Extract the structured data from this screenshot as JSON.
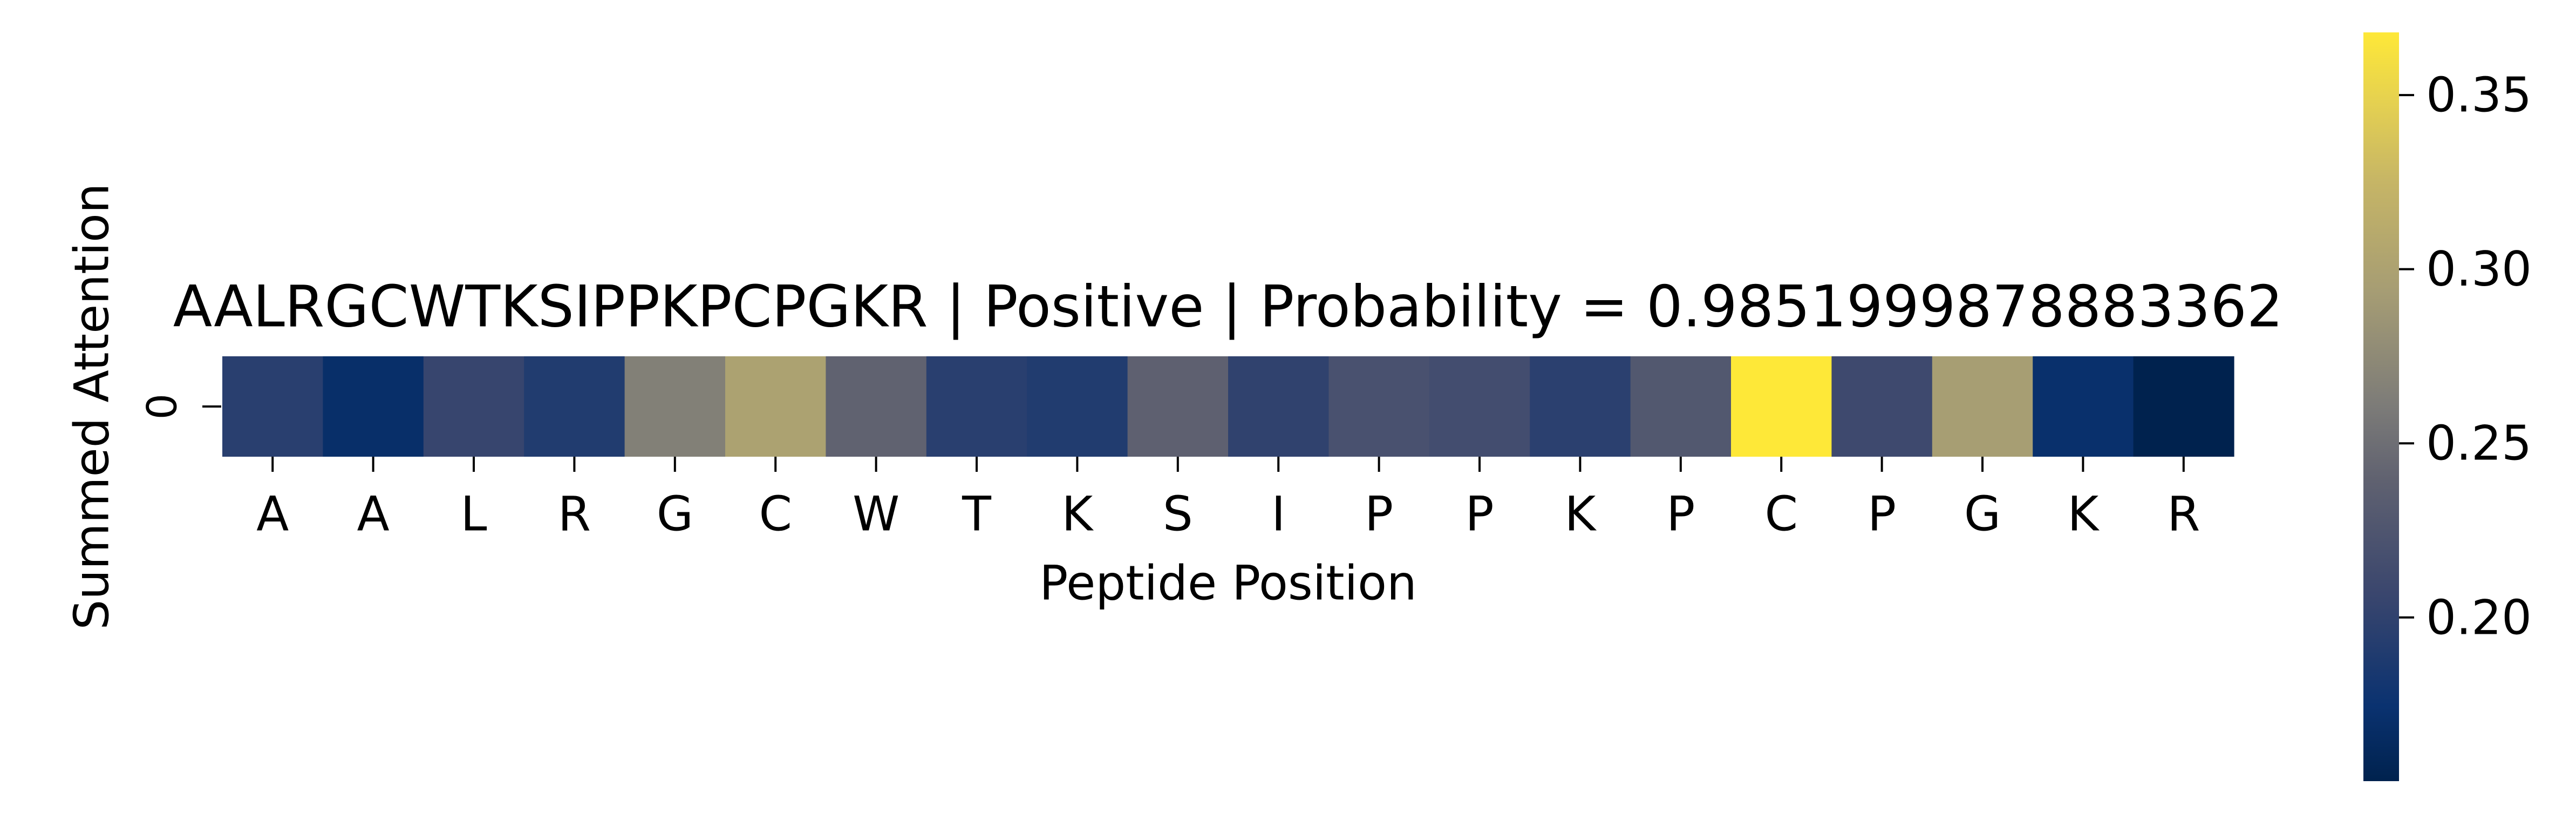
{
  "chart_data": {
    "type": "heatmap",
    "title": "AALRGCWTKSIPPKPCPGKR | Positive | Probability = 0.9851999878883362",
    "xlabel": "Peptide Position",
    "ylabel": "Summed Attention",
    "y_categories": [
      "0"
    ],
    "x_categories": [
      "A",
      "A",
      "L",
      "R",
      "G",
      "C",
      "W",
      "T",
      "K",
      "S",
      "I",
      "P",
      "P",
      "K",
      "P",
      "C",
      "P",
      "G",
      "K",
      "R"
    ],
    "values": [
      0.195,
      0.17,
      0.205,
      0.19,
      0.265,
      0.3,
      0.24,
      0.195,
      0.19,
      0.238,
      0.2,
      0.22,
      0.215,
      0.197,
      0.228,
      0.368,
      0.21,
      0.295,
      0.172,
      0.153
    ],
    "colormap": "cividis",
    "colorbar": {
      "range": [
        0.153,
        0.368
      ],
      "ticks": [
        0.2,
        0.25,
        0.3,
        0.35
      ],
      "tick_labels": [
        "0.20",
        "0.25",
        "0.30",
        "0.35"
      ]
    },
    "grid": false
  }
}
